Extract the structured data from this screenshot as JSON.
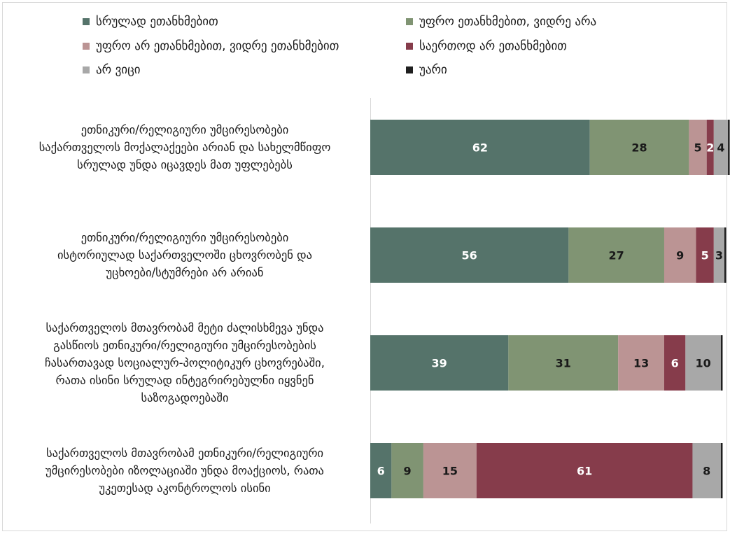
{
  "chart_data": {
    "type": "bar",
    "orientation": "horizontal",
    "stacked": true,
    "title": "",
    "xlabel": "",
    "ylabel": "",
    "xlim": [
      0,
      100
    ],
    "grid": false,
    "legend_position": "top",
    "categories": [
      "ეთნიკური/რელიგიური უმცირესობები საქართველოს მოქალაქეები არიან და სახელმწიფო სრულად უნდა იცავდეს მათ უფლებებს",
      "ეთნიკური/რელიგიური უმცირესობები ისტორიულად საქართველოში ცხოვრობენ და უცხოები/სტუმრები არ არიან",
      "საქართველოს მთავრობამ მეტი ძალისხმევა უნდა გასწიოს ეთნიკური/რელიგიური უმცირესობების ჩასართავად სოციალურ-პოლიტიკურ ცხოვრებაში, რათა ისინი სრულად ინტეგრირებულნი იყვნენ საზოგადოებაში",
      "საქართველოს მთავრობამ ეთნიკური/რელიგიური უმცირესობები იზოლაციაში უნდა მოაქციოს, რათა უკეთესად აკონტროლოს ისინი"
    ],
    "series": [
      {
        "name": "სრულად ეთანხმებით",
        "color": "#55736a",
        "label_color": "#ffffff",
        "values": [
          62,
          56,
          39,
          6
        ]
      },
      {
        "name": "უფრო ეთანხმებით, ვიდრე არა",
        "color": "#809473",
        "label_color": "#1a1a1a",
        "values": [
          28,
          27,
          31,
          9
        ]
      },
      {
        "name": "უფრო არ ეთანხმებით, ვიდრე ეთანხმებით",
        "color": "#bb9494",
        "label_color": "#1a1a1a",
        "values": [
          5,
          9,
          13,
          15
        ]
      },
      {
        "name": "საერთოდ არ ეთანხმებით",
        "color": "#863c4b",
        "label_color": "#ffffff",
        "values": [
          2,
          5,
          6,
          61
        ]
      },
      {
        "name": "არ ვიცი",
        "color": "#a8a8a8",
        "label_color": "#1a1a1a",
        "values": [
          4,
          3,
          10,
          8
        ]
      },
      {
        "name": "უარი",
        "color": "#1f1f1f",
        "label_color": "#ffffff",
        "values": [
          0.5,
          0.5,
          0.5,
          0.5
        ]
      }
    ],
    "data_labels": [
      [
        "62",
        "28",
        "5",
        "2",
        "4",
        ""
      ],
      [
        "56",
        "27",
        "9",
        "5",
        "3",
        ""
      ],
      [
        "39",
        "31",
        "13",
        "6",
        "10",
        ""
      ],
      [
        "6",
        "9",
        "15",
        "61",
        "8",
        ""
      ]
    ],
    "category_lines": [
      [
        "ეთნიკური/რელიგიური უმცირესობები",
        "საქართველოს მოქალაქეები არიან და სახელმწიფო",
        "სრულად უნდა იცავდეს მათ უფლებებს"
      ],
      [
        "ეთნიკური/რელიგიური უმცირესობები",
        "ისტორიულად საქართველოში ცხოვრობენ და",
        "უცხოები/სტუმრები არ არიან"
      ],
      [
        "საქართველოს მთავრობამ მეტი ძალისხმევა უნდა",
        "გასწიოს ეთნიკური/რელიგიური უმცირესობების",
        "ჩასართავად სოციალურ-პოლიტიკურ ცხოვრებაში,",
        "რათა ისინი სრულად ინტეგრირებულნი იყვნენ",
        "საზოგადოებაში"
      ],
      [
        "საქართველოს მთავრობამ ეთნიკური/რელიგიური",
        "უმცირესობები იზოლაციაში უნდა მოაქციოს, რათა",
        "უკეთესად აკონტროლოს ისინი"
      ]
    ]
  }
}
